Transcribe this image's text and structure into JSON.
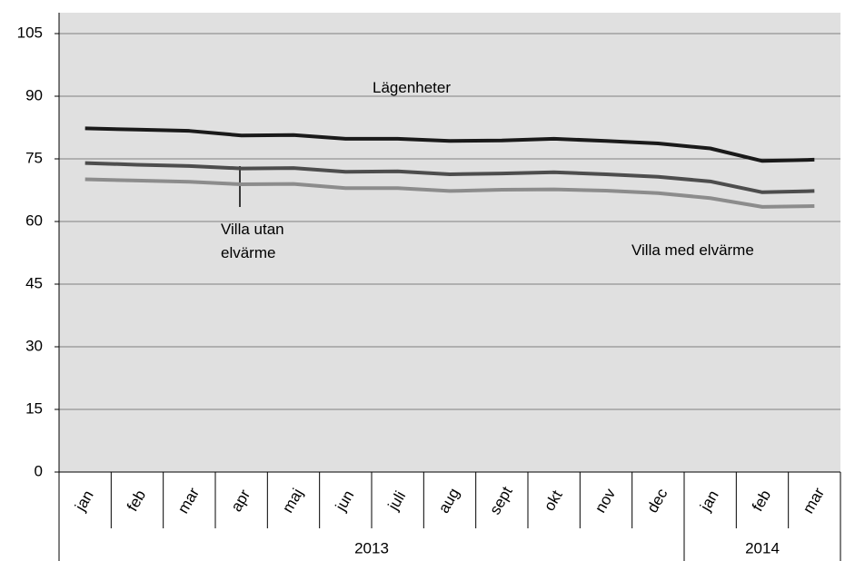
{
  "chart_data": {
    "type": "line",
    "categories": [
      "jan",
      "feb",
      "mar",
      "apr",
      "maj",
      "jun",
      "juli",
      "aug",
      "sept",
      "okt",
      "nov",
      "dec",
      "jan",
      "feb",
      "mar"
    ],
    "years": [
      "2013",
      "2013",
      "2013",
      "2013",
      "2013",
      "2013",
      "2013",
      "2013",
      "2013",
      "2013",
      "2013",
      "2013",
      "2014",
      "2014",
      "2014"
    ],
    "series": [
      {
        "name": "Lägenheter",
        "color": "#1a1a1a",
        "values": [
          82.3,
          82,
          81.7,
          80.6,
          80.7,
          79.8,
          79.8,
          79.3,
          79.4,
          79.8,
          79.3,
          78.7,
          77.5,
          74.5,
          74.8
        ]
      },
      {
        "name": "Villa utan elvärme",
        "color": "#4d4d4d",
        "values": [
          74,
          73.6,
          73.3,
          72.7,
          72.8,
          71.9,
          72,
          71.3,
          71.5,
          71.8,
          71.3,
          70.7,
          69.6,
          67,
          67.3
        ]
      },
      {
        "name": "Villa med elvärme",
        "color": "#8c8c8c",
        "values": [
          70.1,
          69.8,
          69.5,
          68.9,
          69,
          68,
          68,
          67.3,
          67.6,
          67.7,
          67.4,
          66.8,
          65.6,
          63.5,
          63.7
        ]
      }
    ],
    "ylim": [
      0,
      110
    ],
    "yticks": [
      0,
      15,
      30,
      45,
      60,
      75,
      90,
      105
    ],
    "grid": true,
    "legend": false
  }
}
